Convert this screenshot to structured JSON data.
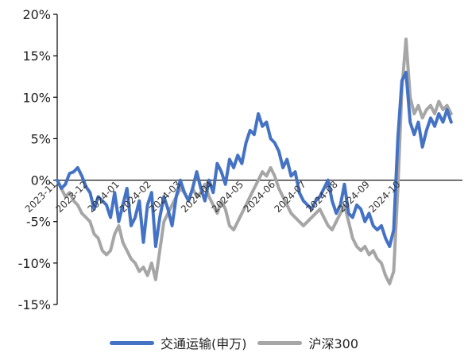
{
  "chart_data": {
    "type": "line",
    "ylim": [
      -15,
      20
    ],
    "yticks": [
      20,
      15,
      10,
      5,
      0,
      -5,
      -10,
      -15
    ],
    "ytick_labels": [
      "20%",
      "15%",
      "10%",
      "5%",
      "0%",
      "-5%",
      "-10%",
      "-15%"
    ],
    "xtick_labels": [
      "2023-11",
      "2023-12",
      "2024-01",
      "2024-02",
      "2024-03",
      "2024-04",
      "2024-05",
      "2024-06",
      "2024-07",
      "2024-08",
      "2024-09",
      "2024-10"
    ],
    "xlim": [
      "2023-11-01",
      "2024-11-30"
    ],
    "series": [
      {
        "name": "交通运输(申万)",
        "color": "#4472C4",
        "points": [
          [
            "2023-11-01",
            0.0
          ],
          [
            "2023-11-05",
            -1.0
          ],
          [
            "2023-11-09",
            -0.5
          ],
          [
            "2023-11-13",
            0.8
          ],
          [
            "2023-11-17",
            1.0
          ],
          [
            "2023-11-21",
            1.5
          ],
          [
            "2023-11-25",
            0.5
          ],
          [
            "2023-11-29",
            -0.8
          ],
          [
            "2023-12-03",
            -1.5
          ],
          [
            "2023-12-07",
            -3.5
          ],
          [
            "2023-12-11",
            -2.0
          ],
          [
            "2023-12-15",
            -2.5
          ],
          [
            "2023-12-19",
            -3.0
          ],
          [
            "2023-12-23",
            -4.5
          ],
          [
            "2023-12-27",
            -1.5
          ],
          [
            "2023-12-31",
            -5.0
          ],
          [
            "2024-01-04",
            -3.0
          ],
          [
            "2024-01-08",
            -1.0
          ],
          [
            "2024-01-12",
            -5.5
          ],
          [
            "2024-01-16",
            -4.5
          ],
          [
            "2024-01-20",
            -2.5
          ],
          [
            "2024-01-24",
            -7.5
          ],
          [
            "2024-01-28",
            -3.0
          ],
          [
            "2024-02-01",
            -1.5
          ],
          [
            "2024-02-05",
            -8.0
          ],
          [
            "2024-02-09",
            -4.5
          ],
          [
            "2024-02-13",
            -2.0
          ],
          [
            "2024-02-17",
            -3.5
          ],
          [
            "2024-02-21",
            -5.5
          ],
          [
            "2024-02-25",
            -2.0
          ],
          [
            "2024-02-29",
            0.0
          ],
          [
            "2024-03-04",
            -1.5
          ],
          [
            "2024-03-08",
            -2.5
          ],
          [
            "2024-03-12",
            -1.0
          ],
          [
            "2024-03-16",
            1.0
          ],
          [
            "2024-03-20",
            -1.0
          ],
          [
            "2024-03-24",
            -2.5
          ],
          [
            "2024-03-28",
            0.0
          ],
          [
            "2024-04-01",
            -1.5
          ],
          [
            "2024-04-05",
            2.0
          ],
          [
            "2024-04-09",
            1.0
          ],
          [
            "2024-04-13",
            -0.5
          ],
          [
            "2024-04-17",
            2.5
          ],
          [
            "2024-04-21",
            1.5
          ],
          [
            "2024-04-25",
            3.0
          ],
          [
            "2024-04-29",
            2.0
          ],
          [
            "2024-05-03",
            4.5
          ],
          [
            "2024-05-07",
            6.0
          ],
          [
            "2024-05-11",
            5.5
          ],
          [
            "2024-05-15",
            8.0
          ],
          [
            "2024-05-19",
            6.5
          ],
          [
            "2024-05-23",
            7.0
          ],
          [
            "2024-05-27",
            5.0
          ],
          [
            "2024-05-31",
            4.5
          ],
          [
            "2024-06-04",
            3.5
          ],
          [
            "2024-06-08",
            1.5
          ],
          [
            "2024-06-12",
            2.5
          ],
          [
            "2024-06-16",
            0.5
          ],
          [
            "2024-06-20",
            1.0
          ],
          [
            "2024-06-24",
            -1.5
          ],
          [
            "2024-06-28",
            -2.5
          ],
          [
            "2024-07-02",
            -3.0
          ],
          [
            "2024-07-06",
            -3.5
          ],
          [
            "2024-07-10",
            -2.5
          ],
          [
            "2024-07-14",
            -2.0
          ],
          [
            "2024-07-18",
            -1.0
          ],
          [
            "2024-07-22",
            0.0
          ],
          [
            "2024-07-26",
            -2.5
          ],
          [
            "2024-07-30",
            -4.0
          ],
          [
            "2024-08-03",
            -3.0
          ],
          [
            "2024-08-07",
            -0.5
          ],
          [
            "2024-08-11",
            -4.0
          ],
          [
            "2024-08-15",
            -4.5
          ],
          [
            "2024-08-19",
            -3.0
          ],
          [
            "2024-08-23",
            -3.5
          ],
          [
            "2024-08-27",
            -5.0
          ],
          [
            "2024-08-31",
            -4.0
          ],
          [
            "2024-09-04",
            -5.5
          ],
          [
            "2024-09-08",
            -6.0
          ],
          [
            "2024-09-12",
            -5.5
          ],
          [
            "2024-09-16",
            -7.0
          ],
          [
            "2024-09-20",
            -8.0
          ],
          [
            "2024-09-24",
            -6.0
          ],
          [
            "2024-09-28",
            5.0
          ],
          [
            "2024-10-02",
            12.0
          ],
          [
            "2024-10-06",
            13.0
          ],
          [
            "2024-10-10",
            7.0
          ],
          [
            "2024-10-14",
            5.5
          ],
          [
            "2024-10-18",
            7.0
          ],
          [
            "2024-10-22",
            4.0
          ],
          [
            "2024-10-26",
            6.0
          ],
          [
            "2024-10-30",
            7.5
          ],
          [
            "2024-11-03",
            6.5
          ],
          [
            "2024-11-07",
            8.0
          ],
          [
            "2024-11-11",
            7.0
          ],
          [
            "2024-11-15",
            8.5
          ],
          [
            "2024-11-19",
            7.0
          ]
        ]
      },
      {
        "name": "沪深300",
        "color": "#A6A6A6",
        "points": [
          [
            "2023-11-01",
            0.0
          ],
          [
            "2023-11-05",
            -1.0
          ],
          [
            "2023-11-09",
            -2.0
          ],
          [
            "2023-11-13",
            -1.5
          ],
          [
            "2023-11-17",
            -2.5
          ],
          [
            "2023-11-21",
            -3.0
          ],
          [
            "2023-11-25",
            -4.0
          ],
          [
            "2023-11-29",
            -4.5
          ],
          [
            "2023-12-03",
            -5.0
          ],
          [
            "2023-12-07",
            -6.5
          ],
          [
            "2023-12-11",
            -7.0
          ],
          [
            "2023-12-15",
            -8.5
          ],
          [
            "2023-12-19",
            -9.0
          ],
          [
            "2023-12-23",
            -8.5
          ],
          [
            "2023-12-27",
            -6.5
          ],
          [
            "2023-12-31",
            -5.5
          ],
          [
            "2024-01-04",
            -7.5
          ],
          [
            "2024-01-08",
            -8.5
          ],
          [
            "2024-01-12",
            -9.5
          ],
          [
            "2024-01-16",
            -10.0
          ],
          [
            "2024-01-20",
            -11.0
          ],
          [
            "2024-01-24",
            -10.5
          ],
          [
            "2024-01-28",
            -11.5
          ],
          [
            "2024-02-01",
            -10.0
          ],
          [
            "2024-02-05",
            -12.0
          ],
          [
            "2024-02-09",
            -8.5
          ],
          [
            "2024-02-13",
            -5.0
          ],
          [
            "2024-02-17",
            -4.0
          ],
          [
            "2024-02-21",
            -3.0
          ],
          [
            "2024-02-25",
            -2.0
          ],
          [
            "2024-02-29",
            -1.0
          ],
          [
            "2024-03-04",
            -1.5
          ],
          [
            "2024-03-08",
            -2.5
          ],
          [
            "2024-03-12",
            -1.0
          ],
          [
            "2024-03-16",
            -2.0
          ],
          [
            "2024-03-20",
            -1.5
          ],
          [
            "2024-03-24",
            -0.5
          ],
          [
            "2024-03-28",
            -2.0
          ],
          [
            "2024-04-01",
            -3.0
          ],
          [
            "2024-04-05",
            -4.0
          ],
          [
            "2024-04-09",
            -2.5
          ],
          [
            "2024-04-13",
            -3.5
          ],
          [
            "2024-04-17",
            -5.5
          ],
          [
            "2024-04-21",
            -6.0
          ],
          [
            "2024-04-25",
            -5.0
          ],
          [
            "2024-04-29",
            -4.0
          ],
          [
            "2024-05-03",
            -3.0
          ],
          [
            "2024-05-07",
            -2.0
          ],
          [
            "2024-05-11",
            -1.0
          ],
          [
            "2024-05-15",
            0.0
          ],
          [
            "2024-05-19",
            1.0
          ],
          [
            "2024-05-23",
            0.5
          ],
          [
            "2024-05-27",
            1.5
          ],
          [
            "2024-05-31",
            0.5
          ],
          [
            "2024-06-04",
            -1.0
          ],
          [
            "2024-06-08",
            -2.0
          ],
          [
            "2024-06-12",
            -3.0
          ],
          [
            "2024-06-16",
            -4.0
          ],
          [
            "2024-06-20",
            -4.5
          ],
          [
            "2024-06-24",
            -5.0
          ],
          [
            "2024-06-28",
            -5.5
          ],
          [
            "2024-07-02",
            -5.0
          ],
          [
            "2024-07-06",
            -4.5
          ],
          [
            "2024-07-10",
            -4.0
          ],
          [
            "2024-07-14",
            -3.5
          ],
          [
            "2024-07-18",
            -4.5
          ],
          [
            "2024-07-22",
            -5.5
          ],
          [
            "2024-07-26",
            -6.0
          ],
          [
            "2024-07-30",
            -5.0
          ],
          [
            "2024-08-03",
            -4.0
          ],
          [
            "2024-08-07",
            -3.0
          ],
          [
            "2024-08-11",
            -5.0
          ],
          [
            "2024-08-15",
            -7.0
          ],
          [
            "2024-08-19",
            -8.0
          ],
          [
            "2024-08-23",
            -8.5
          ],
          [
            "2024-08-27",
            -8.0
          ],
          [
            "2024-08-31",
            -9.0
          ],
          [
            "2024-09-04",
            -8.5
          ],
          [
            "2024-09-08",
            -9.5
          ],
          [
            "2024-09-12",
            -10.0
          ],
          [
            "2024-09-16",
            -11.5
          ],
          [
            "2024-09-20",
            -12.5
          ],
          [
            "2024-09-24",
            -11.0
          ],
          [
            "2024-09-28",
            -1.0
          ],
          [
            "2024-10-02",
            11.0
          ],
          [
            "2024-10-06",
            17.0
          ],
          [
            "2024-10-10",
            10.0
          ],
          [
            "2024-10-14",
            8.0
          ],
          [
            "2024-10-18",
            9.0
          ],
          [
            "2024-10-22",
            7.5
          ],
          [
            "2024-10-26",
            8.5
          ],
          [
            "2024-10-30",
            9.0
          ],
          [
            "2024-11-03",
            8.0
          ],
          [
            "2024-11-07",
            9.5
          ],
          [
            "2024-11-11",
            8.5
          ],
          [
            "2024-11-15",
            9.0
          ],
          [
            "2024-11-19",
            8.0
          ]
        ]
      }
    ],
    "legend_position": "bottom",
    "grid": false
  }
}
